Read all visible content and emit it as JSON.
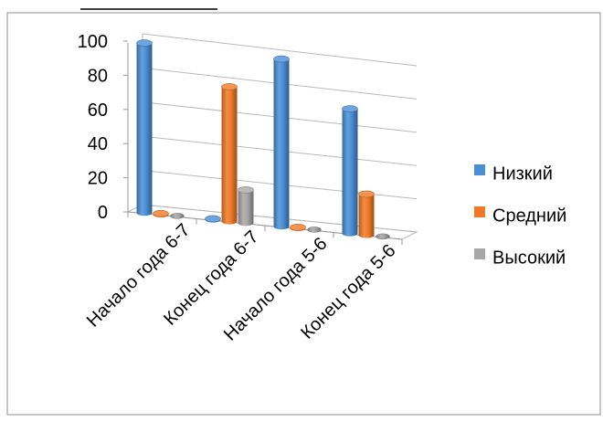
{
  "chart_data": {
    "type": "bar",
    "title": "",
    "xlabel": "",
    "ylabel": "",
    "ylim": [
      0,
      100
    ],
    "yticks": [
      "0",
      "20",
      "40",
      "60",
      "80",
      "100"
    ],
    "categories": [
      "Начало года  6-7",
      "Конец года  6-7",
      "Начало года  5-6",
      "Конец года  5-6"
    ],
    "series": [
      {
        "name": "Низкий",
        "color": "#4a8fd6",
        "values": [
          100,
          1,
          100,
          75
        ]
      },
      {
        "name": "Средний",
        "color": "#f07a26",
        "values": [
          1,
          80,
          1,
          25
        ]
      },
      {
        "name": "Высокий",
        "color": "#a7a7a7",
        "values": [
          0,
          20,
          0,
          0
        ]
      }
    ],
    "legend_position": "right",
    "grid": true,
    "style": "3d-cylinder"
  }
}
